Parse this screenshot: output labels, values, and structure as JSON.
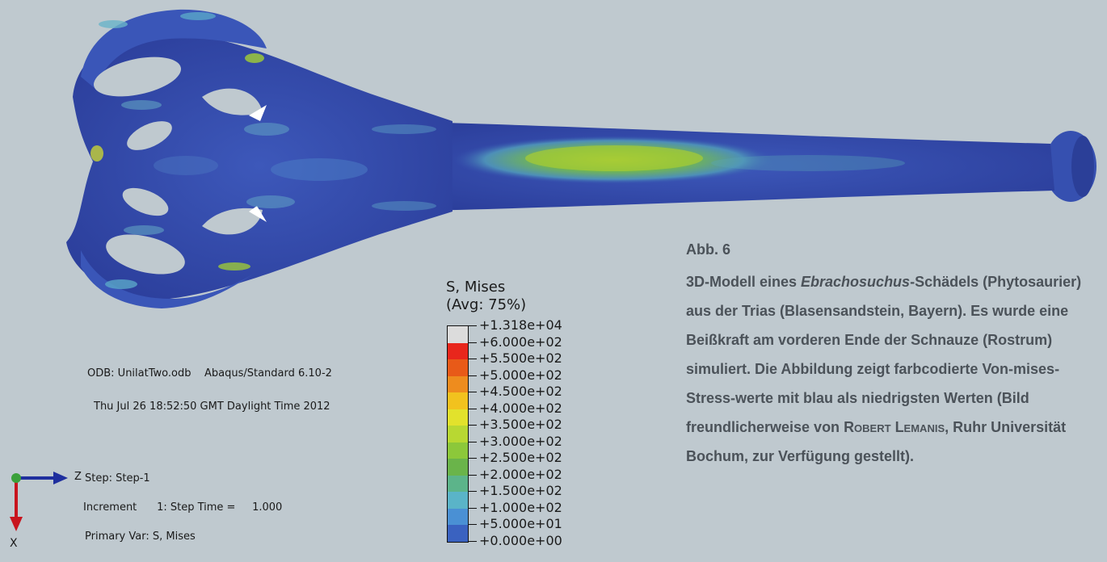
{
  "legend": {
    "title_line1": "S, Mises",
    "title_line2": "(Avg: 75%)",
    "entries": [
      {
        "label": "+1.318e+04",
        "color": "#dcdcdc"
      },
      {
        "label": "+6.000e+02",
        "color": "#e8261c"
      },
      {
        "label": "+5.500e+02",
        "color": "#e85a18"
      },
      {
        "label": "+5.000e+02",
        "color": "#ee8c1e"
      },
      {
        "label": "+4.500e+02",
        "color": "#f2c21e"
      },
      {
        "label": "+4.000e+02",
        "color": "#e2e22c"
      },
      {
        "label": "+3.500e+02",
        "color": "#b8d832"
      },
      {
        "label": "+3.000e+02",
        "color": "#8cc83a"
      },
      {
        "label": "+2.500e+02",
        "color": "#6ab44a"
      },
      {
        "label": "+2.000e+02",
        "color": "#5cb48a"
      },
      {
        "label": "+1.500e+02",
        "color": "#5ab4c8"
      },
      {
        "label": "+1.000e+02",
        "color": "#4a90d4"
      },
      {
        "label": "+5.000e+01",
        "color": "#3a62c0"
      },
      {
        "label": "+0.000e+00",
        "color": "#2e44a8"
      }
    ]
  },
  "info": {
    "odb": "ODB: UnilatTwo.odb    Abaqus/Standard 6.10-2",
    "date": "Thu Jul 26 18:52:50 GMT Daylight Time 2012",
    "step_line1": "Step: Step-1",
    "step_line2": "Increment      1: Step Time =     1.000",
    "step_line3": "Primary Var: S, Mises"
  },
  "axes": {
    "z_label": "Z",
    "x_label": "X"
  },
  "caption": {
    "figure_label": "Abb. 6",
    "part1": "3D-Modell eines ",
    "species": "Ebrachosuchus",
    "part2": "-Schädels (Phytosaurier) aus der Trias (Blasensandstein, Bayern). Es wurde eine Beißkraft am vorderen Ende der Schnauze (Rostrum) simuliert. Die Abbildung zeigt farbcodierte Von-mises-Stress-werte mit blau als niedrigsten Werten (Bild freundlicherweise von ",
    "author": "Robert Lemanis",
    "part3": ", Ruhr Universität Bochum, zur Verfügung gestellt)."
  },
  "colors": {
    "background": "#bfc9cf",
    "low_stress": "#2e44a8",
    "mid_stress": "#8cc83a",
    "caption_text": "#4b5259"
  }
}
